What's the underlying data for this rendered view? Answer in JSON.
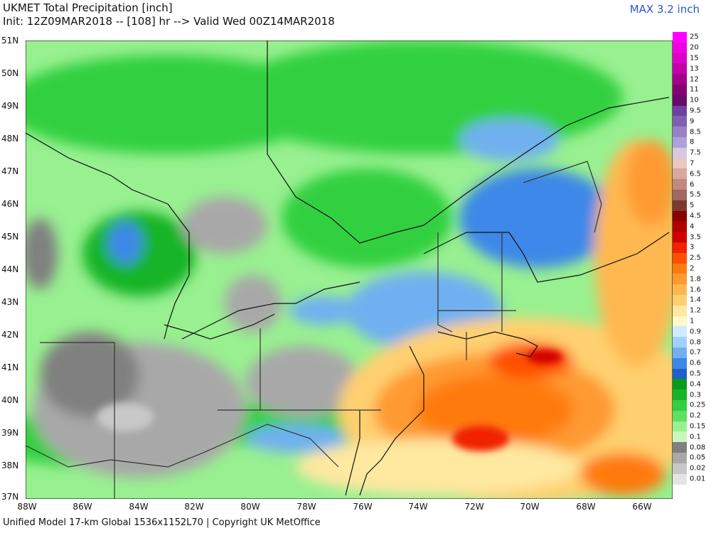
{
  "header": {
    "title_line1": "UKMET Total Precipitation [inch]",
    "title_line2": "Init: 12Z09MAR2018 -- [108] hr --> Valid Wed 00Z14MAR2018",
    "max_label": "MAX 3.2 inch"
  },
  "footer": {
    "credit": "Unified Model 17-km Global 1536x1152L70 | Copyright UK MetOffice"
  },
  "axes": {
    "lat_labels": [
      "51N",
      "50N",
      "49N",
      "48N",
      "47N",
      "46N",
      "45N",
      "44N",
      "43N",
      "42N",
      "41N",
      "40N",
      "39N",
      "38N",
      "37N"
    ],
    "lon_labels": [
      "88W",
      "86W",
      "84W",
      "82W",
      "80W",
      "78W",
      "76W",
      "74W",
      "72W",
      "70W",
      "68W",
      "66W"
    ]
  },
  "legend": {
    "levels": [
      {
        "label": "25",
        "color": "#ff00ff"
      },
      {
        "label": "20",
        "color": "#f000e0"
      },
      {
        "label": "15",
        "color": "#dd00c8"
      },
      {
        "label": "13",
        "color": "#c300aa"
      },
      {
        "label": "12",
        "color": "#a3008c"
      },
      {
        "label": "11",
        "color": "#850070"
      },
      {
        "label": "10",
        "color": "#6a0a6a"
      },
      {
        "label": "9.5",
        "color": "#7040a0"
      },
      {
        "label": "9",
        "color": "#8060b0"
      },
      {
        "label": "8.5",
        "color": "#9a80c8"
      },
      {
        "label": "8",
        "color": "#b0a0d8"
      },
      {
        "label": "7.5",
        "color": "#d8c8e0"
      },
      {
        "label": "7",
        "color": "#e8c8c0"
      },
      {
        "label": "6.5",
        "color": "#d8a8a0"
      },
      {
        "label": "6",
        "color": "#c08880"
      },
      {
        "label": "5.5",
        "color": "#a06860"
      },
      {
        "label": "5",
        "color": "#7a3a30"
      },
      {
        "label": "4.5",
        "color": "#8a0000"
      },
      {
        "label": "4",
        "color": "#b00000"
      },
      {
        "label": "3.5",
        "color": "#d00000"
      },
      {
        "label": "3",
        "color": "#f02000"
      },
      {
        "label": "2.5",
        "color": "#ff5000"
      },
      {
        "label": "2",
        "color": "#ff7a10"
      },
      {
        "label": "1.8",
        "color": "#ff9a30"
      },
      {
        "label": "1.6",
        "color": "#ffb850"
      },
      {
        "label": "1.4",
        "color": "#ffd070"
      },
      {
        "label": "1.2",
        "color": "#ffe8a0"
      },
      {
        "label": "1",
        "color": "#fff8c8"
      },
      {
        "label": "0.9",
        "color": "#d0eaff"
      },
      {
        "label": "0.8",
        "color": "#a0d0ff"
      },
      {
        "label": "0.7",
        "color": "#70b0f0"
      },
      {
        "label": "0.6",
        "color": "#3c88e8"
      },
      {
        "label": "0.5",
        "color": "#1e60c8"
      },
      {
        "label": "0.4",
        "color": "#0a9a1e"
      },
      {
        "label": "0.3",
        "color": "#18b428"
      },
      {
        "label": "0.25",
        "color": "#30d040"
      },
      {
        "label": "0.2",
        "color": "#60e060"
      },
      {
        "label": "0.15",
        "color": "#98f090"
      },
      {
        "label": "0.1",
        "color": "#c8f8c0"
      },
      {
        "label": "0.08",
        "color": "#808080"
      },
      {
        "label": "0.05",
        "color": "#a8a8a8"
      },
      {
        "label": "0.02",
        "color": "#c8c8c8"
      },
      {
        "label": "0.01",
        "color": "#e4e4e4"
      }
    ]
  }
}
